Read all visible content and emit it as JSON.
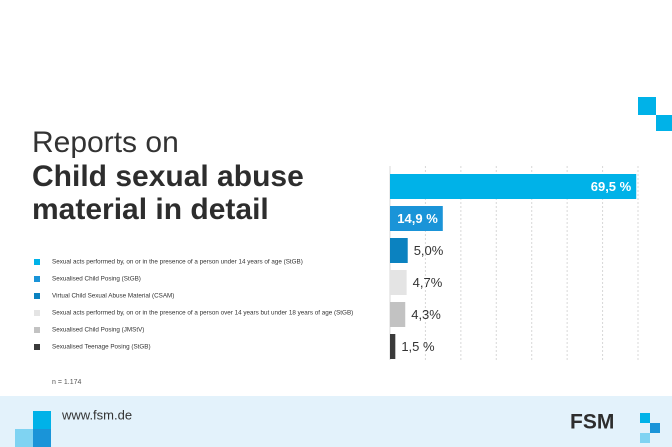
{
  "chart_data": {
    "type": "bar",
    "orientation": "horizontal",
    "title": [
      "Reports on",
      "Child sexual abuse",
      "material in detail"
    ],
    "categories": [
      "Sexual acts performed by, on or in the presence of a person under 14 years of age (StGB)",
      "Sexualised Child Posing (StGB)",
      "Virtual Child Sexual Abuse Material (CSAM)",
      "Sexual acts performed by, on or in the presence of a person over 14 years but under 18 years of age (StGB)",
      "Sexualised Child Posing (JMStV)",
      "Sexualised Teenage Posing (StGB)"
    ],
    "values": [
      69.5,
      14.9,
      5.0,
      4.7,
      4.3,
      1.5
    ],
    "value_labels": [
      "69,5 %",
      "14,9 %",
      "5,0%",
      "4,7%",
      "4,3%",
      "1,5 %"
    ],
    "colors": [
      "#00b2e8",
      "#1a94d8",
      "#0b82c0",
      "#e4e4e4",
      "#c2c2c2",
      "#3a3a3a"
    ],
    "xlim": [
      0,
      70
    ],
    "xticks": [
      0,
      10,
      20,
      30,
      40,
      50,
      60,
      70
    ],
    "grid": true,
    "note": "n = 1.174"
  },
  "footer": {
    "url": "www.fsm.de",
    "logo": "FSM"
  }
}
